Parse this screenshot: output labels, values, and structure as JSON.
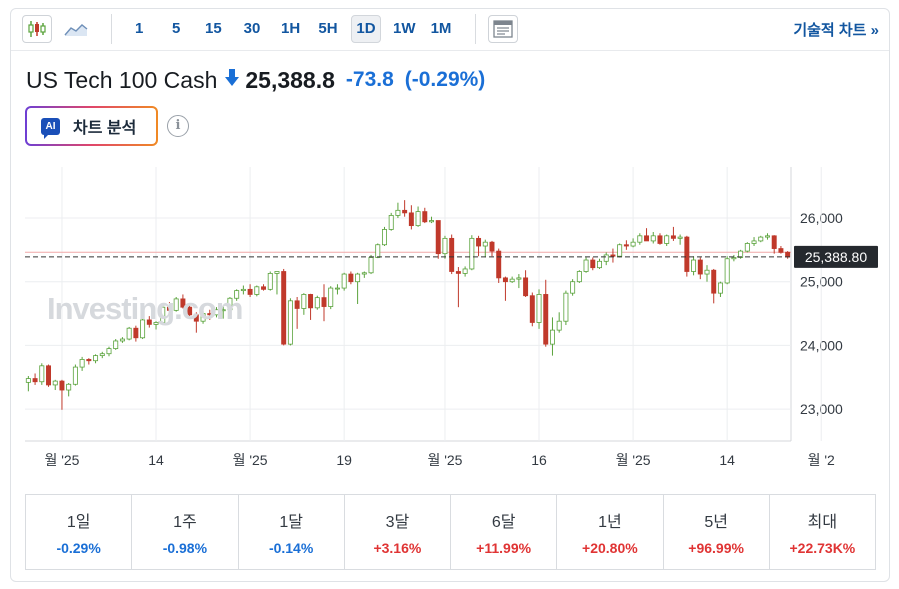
{
  "toolbar": {
    "timeframes": [
      "1",
      "5",
      "15",
      "30",
      "1H",
      "5H",
      "1D",
      "1W",
      "1M"
    ],
    "active_timeframe": "1D",
    "tech_link": "기술적 차트 »"
  },
  "instrument": {
    "name": "US Tech 100 Cash",
    "last": "25,388.8",
    "change": "-73.8",
    "change_pct": "(-0.29%)"
  },
  "ai_button": {
    "badge": "AI",
    "label": "차트 분석"
  },
  "info_glyph": "i",
  "watermark": "Investing.com",
  "colors": {
    "up": "#5aa33c",
    "down": "#c0392b",
    "up_body": "#ffffff",
    "down_body": "#c0392b",
    "accent": "#1256a0",
    "negative": "#1a6fd6",
    "positive": "#e03434"
  },
  "chart_data": {
    "type": "candlestick",
    "ylim": [
      22500,
      26800
    ],
    "y_ticks": [
      23000,
      24000,
      25000,
      26000
    ],
    "y_tick_labels": [
      "23,000",
      "24,000",
      "25,000",
      "26,000"
    ],
    "x_tick_labels": [
      "월 '25",
      "14",
      "월 '25",
      "19",
      "월 '25",
      "16",
      "월 '25",
      "14",
      "월 '2"
    ],
    "x_tick_index": [
      5,
      19,
      33,
      47,
      62,
      76,
      90,
      104,
      118
    ],
    "last_price_label": "25,388.80",
    "last_price": 25388.8,
    "prev_close": 25462.6,
    "grid": true,
    "candles": [
      {
        "o": 23420,
        "h": 23520,
        "l": 23280,
        "c": 23480
      },
      {
        "o": 23480,
        "h": 23560,
        "l": 23380,
        "c": 23430
      },
      {
        "o": 23430,
        "h": 23720,
        "l": 23380,
        "c": 23680
      },
      {
        "o": 23680,
        "h": 23700,
        "l": 23350,
        "c": 23380
      },
      {
        "o": 23380,
        "h": 23460,
        "l": 23300,
        "c": 23440
      },
      {
        "o": 23440,
        "h": 23460,
        "l": 22990,
        "c": 23300
      },
      {
        "o": 23300,
        "h": 23410,
        "l": 23200,
        "c": 23390
      },
      {
        "o": 23390,
        "h": 23700,
        "l": 23370,
        "c": 23660
      },
      {
        "o": 23660,
        "h": 23820,
        "l": 23600,
        "c": 23780
      },
      {
        "o": 23780,
        "h": 23800,
        "l": 23700,
        "c": 23760
      },
      {
        "o": 23760,
        "h": 23860,
        "l": 23720,
        "c": 23840
      },
      {
        "o": 23840,
        "h": 23900,
        "l": 23800,
        "c": 23870
      },
      {
        "o": 23870,
        "h": 23980,
        "l": 23830,
        "c": 23950
      },
      {
        "o": 23950,
        "h": 24100,
        "l": 23930,
        "c": 24070
      },
      {
        "o": 24070,
        "h": 24130,
        "l": 24040,
        "c": 24100
      },
      {
        "o": 24100,
        "h": 24290,
        "l": 24080,
        "c": 24270
      },
      {
        "o": 24270,
        "h": 24310,
        "l": 24060,
        "c": 24120
      },
      {
        "o": 24120,
        "h": 24420,
        "l": 24100,
        "c": 24400
      },
      {
        "o": 24400,
        "h": 24460,
        "l": 24280,
        "c": 24330
      },
      {
        "o": 24330,
        "h": 24380,
        "l": 24250,
        "c": 24360
      },
      {
        "o": 24360,
        "h": 24640,
        "l": 24340,
        "c": 24600
      },
      {
        "o": 24600,
        "h": 24680,
        "l": 24520,
        "c": 24550
      },
      {
        "o": 24550,
        "h": 24760,
        "l": 24530,
        "c": 24730
      },
      {
        "o": 24730,
        "h": 24800,
        "l": 24580,
        "c": 24600
      },
      {
        "o": 24600,
        "h": 24660,
        "l": 24460,
        "c": 24480
      },
      {
        "o": 24480,
        "h": 24520,
        "l": 24200,
        "c": 24380
      },
      {
        "o": 24380,
        "h": 24540,
        "l": 24340,
        "c": 24500
      },
      {
        "o": 24500,
        "h": 24560,
        "l": 24400,
        "c": 24480
      },
      {
        "o": 24480,
        "h": 24600,
        "l": 24440,
        "c": 24560
      },
      {
        "o": 24560,
        "h": 24620,
        "l": 24420,
        "c": 24560
      },
      {
        "o": 24560,
        "h": 24760,
        "l": 24520,
        "c": 24740
      },
      {
        "o": 24740,
        "h": 24880,
        "l": 24700,
        "c": 24860
      },
      {
        "o": 24860,
        "h": 24940,
        "l": 24800,
        "c": 24880
      },
      {
        "o": 24880,
        "h": 24960,
        "l": 24760,
        "c": 24800
      },
      {
        "o": 24800,
        "h": 24940,
        "l": 24770,
        "c": 24920
      },
      {
        "o": 24920,
        "h": 24960,
        "l": 24860,
        "c": 24880
      },
      {
        "o": 24880,
        "h": 25160,
        "l": 24860,
        "c": 25130
      },
      {
        "o": 25130,
        "h": 25160,
        "l": 24800,
        "c": 25160
      },
      {
        "o": 25160,
        "h": 25200,
        "l": 24000,
        "c": 24020
      },
      {
        "o": 24020,
        "h": 24740,
        "l": 24000,
        "c": 24700
      },
      {
        "o": 24700,
        "h": 24760,
        "l": 24260,
        "c": 24580
      },
      {
        "o": 24580,
        "h": 24820,
        "l": 24480,
        "c": 24800
      },
      {
        "o": 24800,
        "h": 24810,
        "l": 24400,
        "c": 24590
      },
      {
        "o": 24590,
        "h": 24780,
        "l": 24560,
        "c": 24750
      },
      {
        "o": 24750,
        "h": 24960,
        "l": 24380,
        "c": 24610
      },
      {
        "o": 24610,
        "h": 24930,
        "l": 24570,
        "c": 24900
      },
      {
        "o": 24900,
        "h": 24960,
        "l": 24800,
        "c": 24900
      },
      {
        "o": 24900,
        "h": 25140,
        "l": 24860,
        "c": 25120
      },
      {
        "o": 25120,
        "h": 25160,
        "l": 24960,
        "c": 25000
      },
      {
        "o": 25000,
        "h": 25140,
        "l": 24650,
        "c": 25120
      },
      {
        "o": 25120,
        "h": 25160,
        "l": 25060,
        "c": 25140
      },
      {
        "o": 25140,
        "h": 25420,
        "l": 25120,
        "c": 25380
      },
      {
        "o": 25380,
        "h": 25600,
        "l": 25370,
        "c": 25580
      },
      {
        "o": 25580,
        "h": 25860,
        "l": 25560,
        "c": 25820
      },
      {
        "o": 25820,
        "h": 26080,
        "l": 25800,
        "c": 26040
      },
      {
        "o": 26040,
        "h": 26240,
        "l": 26000,
        "c": 26120
      },
      {
        "o": 26120,
        "h": 26280,
        "l": 26020,
        "c": 26080
      },
      {
        "o": 26080,
        "h": 26200,
        "l": 25820,
        "c": 25880
      },
      {
        "o": 25880,
        "h": 26180,
        "l": 25860,
        "c": 26100
      },
      {
        "o": 26100,
        "h": 26160,
        "l": 25920,
        "c": 25940
      },
      {
        "o": 25940,
        "h": 26020,
        "l": 25920,
        "c": 25960
      },
      {
        "o": 25960,
        "h": 25960,
        "l": 25360,
        "c": 25440
      },
      {
        "o": 25440,
        "h": 25720,
        "l": 25360,
        "c": 25680
      },
      {
        "o": 25680,
        "h": 25740,
        "l": 25120,
        "c": 25160
      },
      {
        "o": 25160,
        "h": 25230,
        "l": 24600,
        "c": 25130
      },
      {
        "o": 25130,
        "h": 25240,
        "l": 25080,
        "c": 25200
      },
      {
        "o": 25200,
        "h": 25730,
        "l": 25180,
        "c": 25680
      },
      {
        "o": 25680,
        "h": 25720,
        "l": 25400,
        "c": 25560
      },
      {
        "o": 25560,
        "h": 25660,
        "l": 25380,
        "c": 25620
      },
      {
        "o": 25620,
        "h": 25640,
        "l": 25400,
        "c": 25480
      },
      {
        "o": 25480,
        "h": 25520,
        "l": 24980,
        "c": 25060
      },
      {
        "o": 25060,
        "h": 25080,
        "l": 24700,
        "c": 25000
      },
      {
        "o": 25000,
        "h": 25080,
        "l": 24980,
        "c": 25040
      },
      {
        "o": 25040,
        "h": 25120,
        "l": 24900,
        "c": 25060
      },
      {
        "o": 25060,
        "h": 25180,
        "l": 24760,
        "c": 24780
      },
      {
        "o": 24780,
        "h": 24830,
        "l": 24300,
        "c": 24360
      },
      {
        "o": 24360,
        "h": 24880,
        "l": 24260,
        "c": 24800
      },
      {
        "o": 24800,
        "h": 25030,
        "l": 23980,
        "c": 24020
      },
      {
        "o": 24020,
        "h": 24440,
        "l": 23840,
        "c": 24240
      },
      {
        "o": 24240,
        "h": 24520,
        "l": 24200,
        "c": 24380
      },
      {
        "o": 24380,
        "h": 24860,
        "l": 24320,
        "c": 24820
      },
      {
        "o": 24820,
        "h": 25040,
        "l": 24780,
        "c": 25000
      },
      {
        "o": 25000,
        "h": 25180,
        "l": 24980,
        "c": 25160
      },
      {
        "o": 25160,
        "h": 25380,
        "l": 25140,
        "c": 25340
      },
      {
        "o": 25340,
        "h": 25380,
        "l": 25180,
        "c": 25220
      },
      {
        "o": 25220,
        "h": 25360,
        "l": 25200,
        "c": 25320
      },
      {
        "o": 25320,
        "h": 25460,
        "l": 25260,
        "c": 25420
      },
      {
        "o": 25420,
        "h": 25520,
        "l": 25300,
        "c": 25400
      },
      {
        "o": 25400,
        "h": 25600,
        "l": 25380,
        "c": 25580
      },
      {
        "o": 25580,
        "h": 25650,
        "l": 25500,
        "c": 25560
      },
      {
        "o": 25560,
        "h": 25680,
        "l": 25540,
        "c": 25620
      },
      {
        "o": 25620,
        "h": 25760,
        "l": 25580,
        "c": 25720
      },
      {
        "o": 25720,
        "h": 25840,
        "l": 25680,
        "c": 25640
      },
      {
        "o": 25640,
        "h": 25780,
        "l": 25600,
        "c": 25720
      },
      {
        "o": 25720,
        "h": 25760,
        "l": 25580,
        "c": 25600
      },
      {
        "o": 25600,
        "h": 25740,
        "l": 25560,
        "c": 25720
      },
      {
        "o": 25720,
        "h": 25860,
        "l": 25640,
        "c": 25680
      },
      {
        "o": 25680,
        "h": 25740,
        "l": 25580,
        "c": 25700
      },
      {
        "o": 25700,
        "h": 25720,
        "l": 25080,
        "c": 25160
      },
      {
        "o": 25160,
        "h": 25400,
        "l": 25100,
        "c": 25340
      },
      {
        "o": 25340,
        "h": 25380,
        "l": 25040,
        "c": 25120
      },
      {
        "o": 25120,
        "h": 25260,
        "l": 25000,
        "c": 25180
      },
      {
        "o": 25180,
        "h": 25200,
        "l": 24660,
        "c": 24820
      },
      {
        "o": 24820,
        "h": 25000,
        "l": 24760,
        "c": 24980
      },
      {
        "o": 24980,
        "h": 25400,
        "l": 24960,
        "c": 25360
      },
      {
        "o": 25360,
        "h": 25420,
        "l": 25320,
        "c": 25380
      },
      {
        "o": 25380,
        "h": 25500,
        "l": 25360,
        "c": 25480
      },
      {
        "o": 25480,
        "h": 25620,
        "l": 25460,
        "c": 25600
      },
      {
        "o": 25600,
        "h": 25700,
        "l": 25560,
        "c": 25640
      },
      {
        "o": 25640,
        "h": 25720,
        "l": 25620,
        "c": 25700
      },
      {
        "o": 25700,
        "h": 25760,
        "l": 25660,
        "c": 25720
      },
      {
        "o": 25720,
        "h": 25730,
        "l": 25440,
        "c": 25520
      },
      {
        "o": 25520,
        "h": 25560,
        "l": 25440,
        "c": 25460
      },
      {
        "o": 25462,
        "h": 25480,
        "l": 25360,
        "c": 25389
      }
    ]
  },
  "performance": [
    {
      "label": "1일",
      "value": "-0.29%",
      "dir": "neg"
    },
    {
      "label": "1주",
      "value": "-0.98%",
      "dir": "neg"
    },
    {
      "label": "1달",
      "value": "-0.14%",
      "dir": "neg"
    },
    {
      "label": "3달",
      "value": "+3.16%",
      "dir": "pos"
    },
    {
      "label": "6달",
      "value": "+11.99%",
      "dir": "pos"
    },
    {
      "label": "1년",
      "value": "+20.80%",
      "dir": "pos"
    },
    {
      "label": "5년",
      "value": "+96.99%",
      "dir": "pos"
    },
    {
      "label": "최대",
      "value": "+22.73K%",
      "dir": "pos"
    }
  ]
}
